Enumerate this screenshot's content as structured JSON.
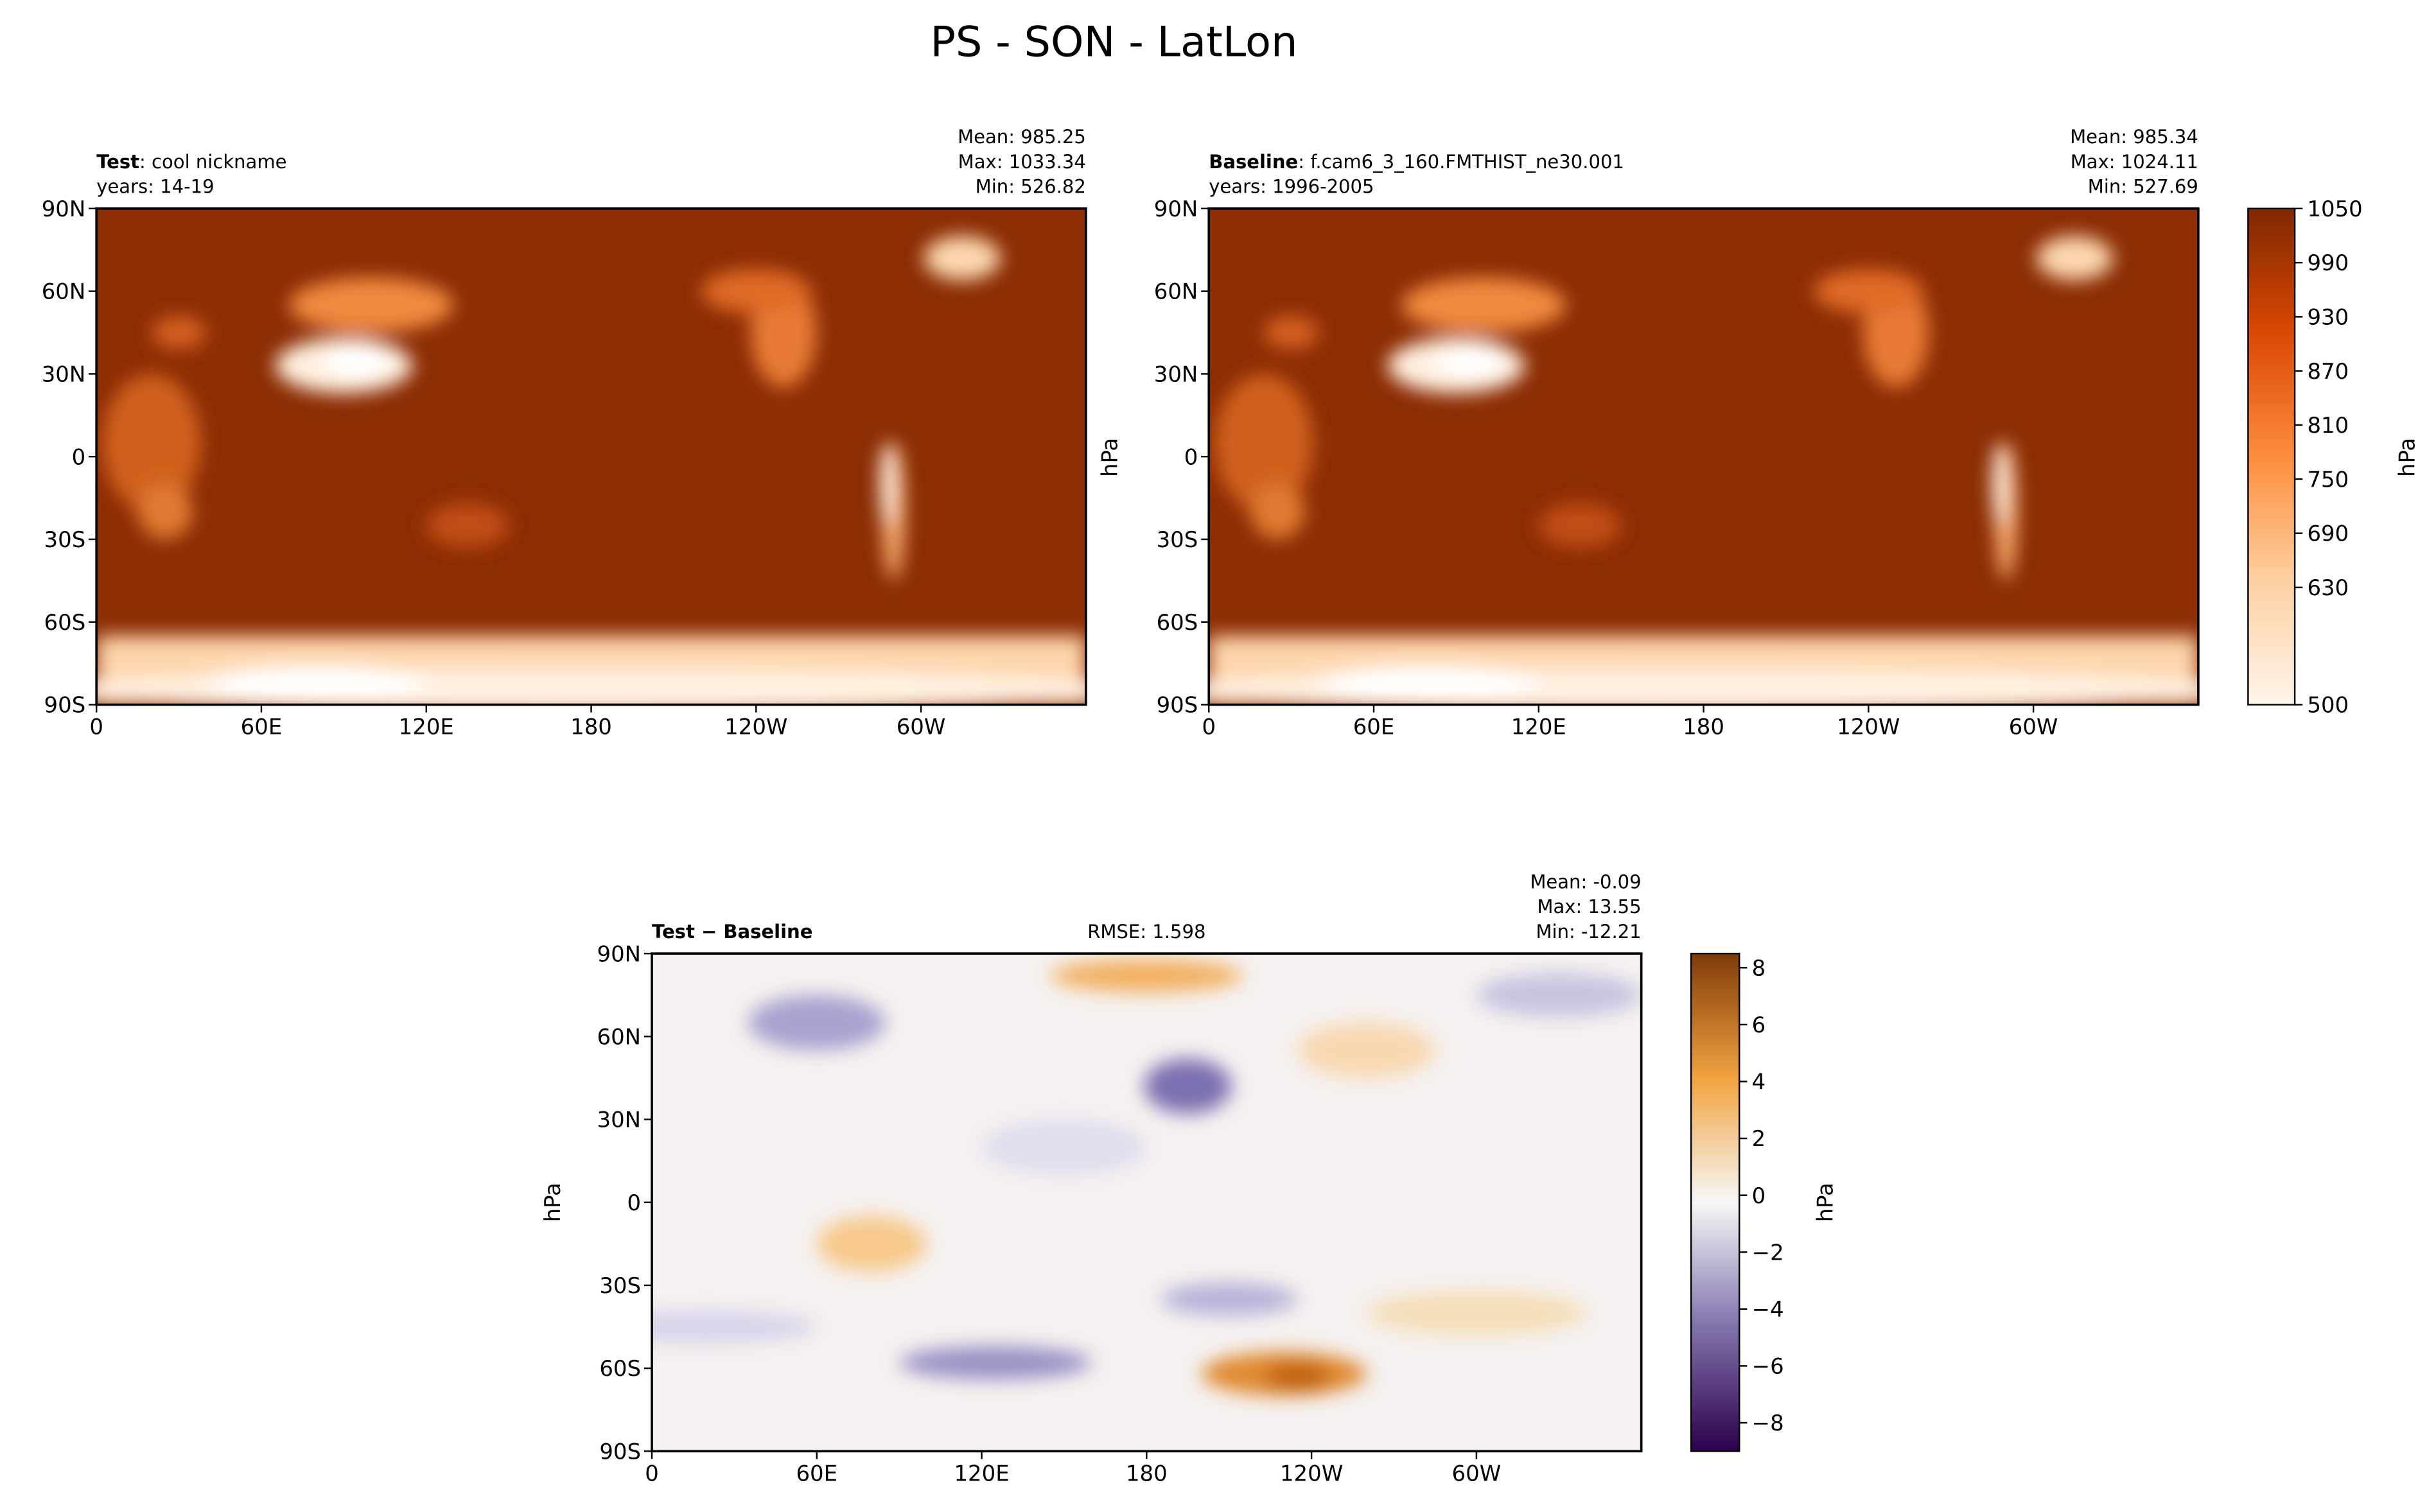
{
  "chart_data": [
    {
      "type": "heatmap",
      "figure_title": "PS - SON - LatLon",
      "panel": "test",
      "label_bold": "Test",
      "label_rest": ": cool nickname",
      "years": "years: 14-19",
      "stats": {
        "mean": "Mean: 985.25",
        "max": "Max: 1033.34",
        "min": "Min: 526.82"
      },
      "x_ticks": [
        "0",
        "60E",
        "120E",
        "180",
        "120W",
        "60W"
      ],
      "y_ticks": [
        "90N",
        "60N",
        "30N",
        "0",
        "30S",
        "60S",
        "90S"
      ]
    },
    {
      "type": "heatmap",
      "panel": "baseline",
      "label_bold": "Baseline",
      "label_rest": ": f.cam6_3_160.FMTHIST_ne30.001",
      "years": "years: 1996-2005",
      "stats": {
        "mean": "Mean: 985.34",
        "max": "Max: 1024.11",
        "min": "Min: 527.69"
      },
      "ylabel": "hPa",
      "x_ticks": [
        "0",
        "60E",
        "120E",
        "180",
        "120W",
        "60W"
      ],
      "y_ticks": [
        "90N",
        "60N",
        "30N",
        "0",
        "30S",
        "60S",
        "90S"
      ],
      "colorbar": {
        "label": "hPa",
        "range": [
          500,
          1050
        ],
        "ticks": [
          "1050",
          "990",
          "930",
          "870",
          "810",
          "750",
          "690",
          "630",
          "500"
        ],
        "colormap": "Oranges"
      }
    },
    {
      "type": "heatmap",
      "panel": "difference",
      "label_bold": "Test − Baseline",
      "rmse": "RMSE: 1.598",
      "stats": {
        "mean": "Mean: -0.09",
        "max": "Max: 13.55",
        "min": "Min: -12.21"
      },
      "ylabel": "hPa",
      "x_ticks": [
        "0",
        "60E",
        "120E",
        "180",
        "120W",
        "60W"
      ],
      "y_ticks": [
        "90N",
        "60N",
        "30N",
        "0",
        "30S",
        "60S",
        "90S"
      ],
      "colorbar": {
        "label": "hPa",
        "range": [
          -9,
          8.5
        ],
        "ticks": [
          "8",
          "6",
          "4",
          "2",
          "0",
          "−2",
          "−4",
          "−6",
          "−8"
        ],
        "colormap": "PuOr_r"
      }
    }
  ]
}
